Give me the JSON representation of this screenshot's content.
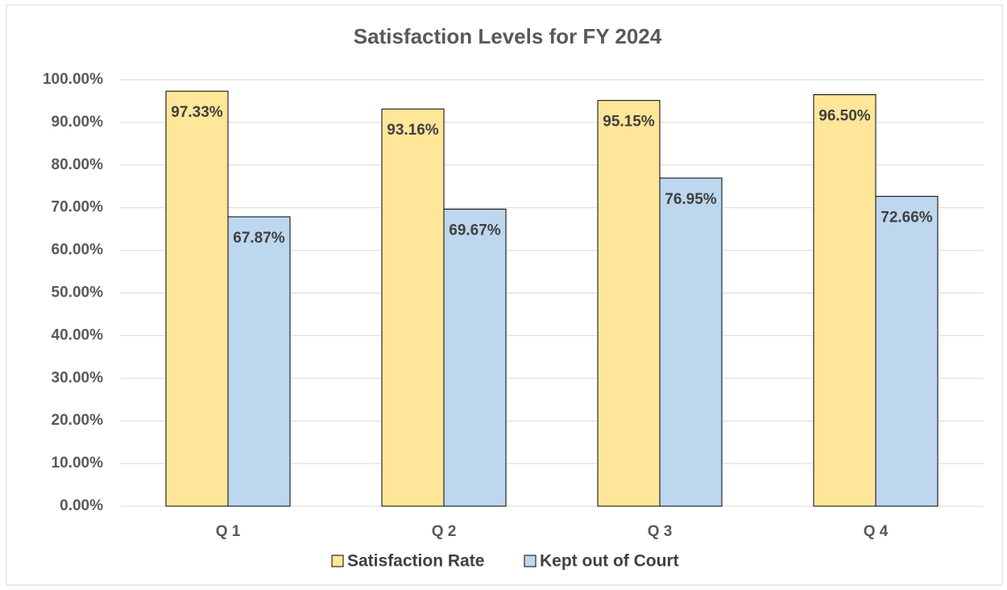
{
  "chart_data": {
    "type": "bar",
    "title": "Satisfaction Levels for FY 2024",
    "categories": [
      "Q 1",
      "Q 2",
      "Q 3",
      "Q 4"
    ],
    "series": [
      {
        "name": "Satisfaction Rate",
        "color": "#ffe699",
        "values": [
          97.33,
          93.16,
          95.15,
          96.5
        ],
        "value_labels": [
          "97.33%",
          "93.16%",
          "95.15%",
          "96.50%"
        ]
      },
      {
        "name": "Kept out of Court",
        "color": "#bdd7ee",
        "values": [
          67.87,
          69.67,
          76.95,
          72.66
        ],
        "value_labels": [
          "67.87%",
          "69.67%",
          "76.95%",
          "72.66%"
        ]
      }
    ],
    "ylim": [
      0,
      100
    ],
    "yticks": [
      {
        "value": 0,
        "label": "0.00%"
      },
      {
        "value": 10,
        "label": "10.00%"
      },
      {
        "value": 20,
        "label": "20.00%"
      },
      {
        "value": 30,
        "label": "30.00%"
      },
      {
        "value": 40,
        "label": "40.00%"
      },
      {
        "value": 50,
        "label": "50.00%"
      },
      {
        "value": 60,
        "label": "60.00%"
      },
      {
        "value": 70,
        "label": "70.00%"
      },
      {
        "value": 80,
        "label": "80.00%"
      },
      {
        "value": 90,
        "label": "90.00%"
      },
      {
        "value": 100,
        "label": "100.00%"
      }
    ],
    "grid": true,
    "legend": "bottom"
  }
}
